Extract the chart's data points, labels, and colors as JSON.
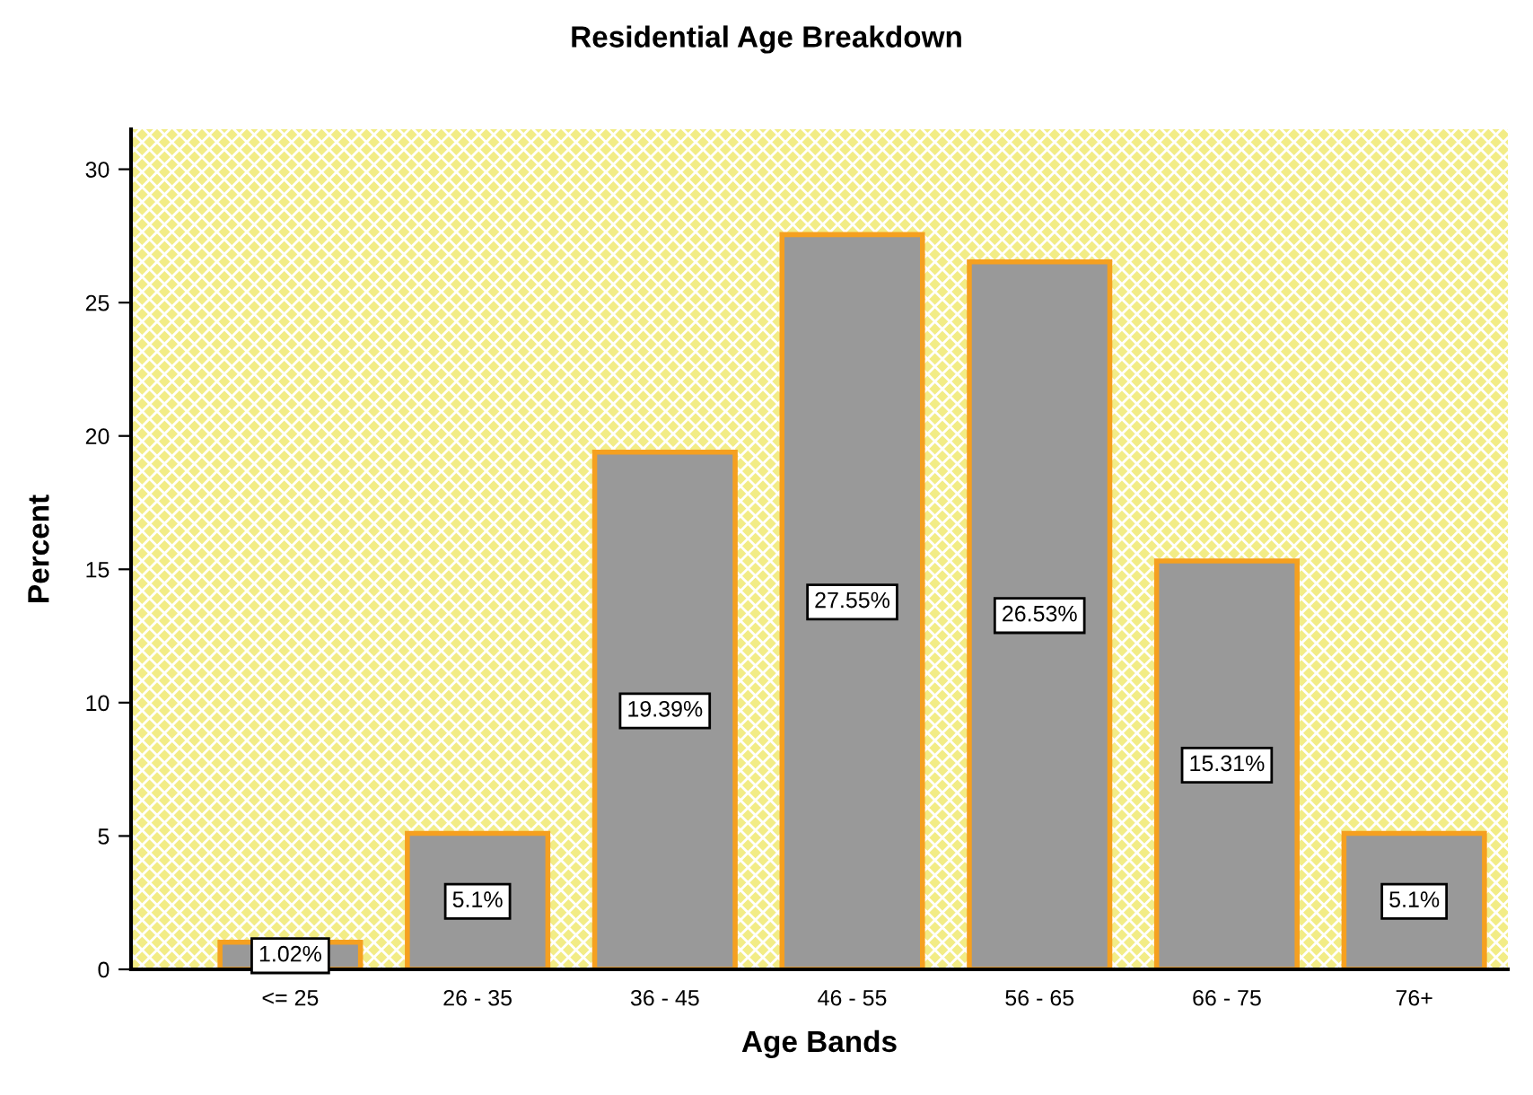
{
  "chart_data": {
    "type": "bar",
    "title": "Residential Age Breakdown",
    "xlabel": "Age Bands",
    "ylabel": "Percent",
    "categories": [
      "<= 25",
      "26 - 35",
      "36 - 45",
      "46 - 55",
      "56 - 65",
      "66 - 75",
      "76+"
    ],
    "values": [
      1.02,
      5.1,
      19.39,
      27.55,
      26.53,
      15.31,
      5.1
    ],
    "value_labels": [
      "1.02%",
      "5.1%",
      "19.39%",
      "27.55%",
      "26.53%",
      "15.31%",
      "5.1%"
    ],
    "color": "#999999",
    "ylim": [
      0,
      31.5
    ],
    "yticks": [
      0,
      5,
      10,
      15,
      20,
      25,
      30
    ],
    "grid": false
  }
}
